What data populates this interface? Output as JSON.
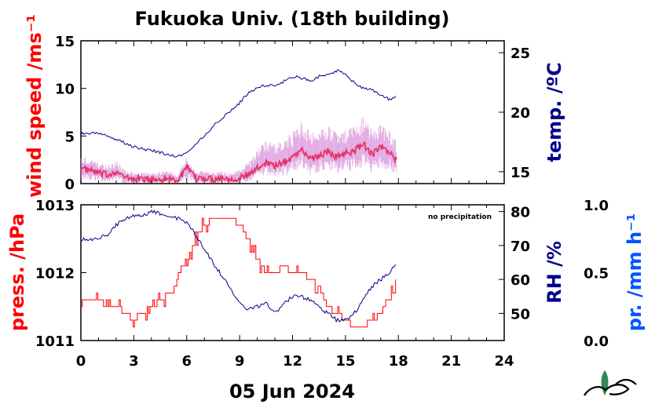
{
  "chart_data": [
    {
      "type": "line",
      "title": "Fukuoka Univ. (18th building)",
      "xlabel": "05 Jun 2024",
      "x_ticks": [
        "0",
        "3",
        "6",
        "9",
        "12",
        "15",
        "18",
        "21",
        "24"
      ],
      "xlim": [
        0,
        24
      ],
      "y_left": {
        "label": "wind speed /ms⁻¹",
        "ticks": [
          "0",
          "5",
          "10",
          "15"
        ],
        "lim": [
          0,
          15
        ],
        "color": "#ff0000"
      },
      "y_right": {
        "label": "temp. /ºC",
        "ticks": [
          "15",
          "20",
          "25"
        ],
        "lim": [
          14,
          26
        ],
        "color": "#00008b"
      },
      "series": [
        {
          "name": "wind speed (mean)",
          "axis": "left",
          "color": "#ff0000",
          "x": [
            0,
            0.5,
            1,
            1.5,
            2,
            2.5,
            3,
            3.5,
            4,
            4.5,
            5,
            5.5,
            6,
            6.5,
            7,
            7.5,
            8,
            8.5,
            9,
            9.5,
            10,
            10.5,
            11,
            11.5,
            12,
            12.5,
            13,
            13.5,
            14,
            14.5,
            15,
            15.5,
            16,
            16.5,
            17,
            17.5,
            17.9
          ],
          "y": [
            1.6,
            1.4,
            1.1,
            0.9,
            1.3,
            0.6,
            0.5,
            0.5,
            0.4,
            0.5,
            0.6,
            0.3,
            1.7,
            0.5,
            0.6,
            0.5,
            0.6,
            0.5,
            0.6,
            0.9,
            1.6,
            2.3,
            1.9,
            2.2,
            2.8,
            3.6,
            2.6,
            2.9,
            3.4,
            2.8,
            3.2,
            3.4,
            4.2,
            3.1,
            3.8,
            3.3,
            2.4
          ]
        },
        {
          "name": "wind speed (gust range)",
          "axis": "left",
          "color": "#cc66cc",
          "x": [
            0,
            0.5,
            1,
            1.5,
            2,
            2.5,
            3,
            3.5,
            4,
            4.5,
            5,
            5.5,
            6,
            6.5,
            7,
            7.5,
            8,
            8.5,
            9,
            9.5,
            10,
            10.5,
            11,
            11.5,
            12,
            12.5,
            13,
            13.5,
            14,
            14.5,
            15,
            15.5,
            16,
            16.5,
            17,
            17.5,
            17.9
          ],
          "y_min": [
            0.4,
            0.3,
            0.2,
            0.1,
            0.3,
            0.0,
            0.0,
            0.0,
            0.0,
            0.0,
            0.0,
            0.0,
            0.5,
            0.0,
            0.0,
            0.0,
            0.0,
            0.0,
            0.1,
            0.2,
            0.6,
            0.9,
            0.6,
            0.8,
            1.0,
            1.6,
            0.9,
            1.1,
            1.2,
            1.0,
            1.2,
            1.3,
            1.8,
            1.1,
            1.6,
            1.3,
            0.8
          ],
          "y_max": [
            2.9,
            2.6,
            2.2,
            2.0,
            2.4,
            1.4,
            1.2,
            1.2,
            1.1,
            1.3,
            1.4,
            0.9,
            3.0,
            1.2,
            1.4,
            1.2,
            1.3,
            1.1,
            1.5,
            2.3,
            3.6,
            4.8,
            4.3,
            4.7,
            5.4,
            6.6,
            5.3,
            5.6,
            6.1,
            5.3,
            5.8,
            6.0,
            7.0,
            5.7,
            6.3,
            5.8,
            4.4
          ]
        },
        {
          "name": "temperature",
          "axis": "right",
          "color": "#00008b",
          "x": [
            0,
            0.5,
            1,
            1.5,
            2,
            2.5,
            3,
            3.5,
            4,
            4.5,
            5,
            5.5,
            6,
            6.5,
            7,
            7.5,
            8,
            8.5,
            9,
            9.5,
            10,
            10.5,
            11,
            11.5,
            12,
            12.5,
            13,
            13.5,
            14,
            14.5,
            15,
            15.5,
            16,
            16.5,
            17,
            17.5,
            17.9
          ],
          "y": [
            18.2,
            18.2,
            18.2,
            18.0,
            17.7,
            17.4,
            17.1,
            16.9,
            16.8,
            16.6,
            16.4,
            16.3,
            16.6,
            17.3,
            18.0,
            18.8,
            19.5,
            20.1,
            20.8,
            21.6,
            22.1,
            22.3,
            22.2,
            22.6,
            23.0,
            22.9,
            22.6,
            23.0,
            23.1,
            23.5,
            23.2,
            22.5,
            22.0,
            21.9,
            21.4,
            21.1,
            21.3
          ]
        }
      ]
    },
    {
      "type": "line",
      "x_ticks": [
        "0",
        "3",
        "6",
        "9",
        "12",
        "15",
        "18",
        "21",
        "24"
      ],
      "xlim": [
        0,
        24
      ],
      "annotation": "no precipitation",
      "y_left": {
        "label": "press. /hPa",
        "ticks": [
          "1011",
          "1012",
          "1013"
        ],
        "lim": [
          1011,
          1013
        ],
        "color": "#ff0000"
      },
      "y_right": {
        "label": "RH /%",
        "ticks": [
          "50",
          "60",
          "70",
          "80"
        ],
        "lim": [
          42,
          82
        ],
        "color": "#00008b"
      },
      "y_right2": {
        "label": "pr. /mm h⁻¹",
        "ticks": [
          "0.0",
          "0.5",
          "1.0"
        ],
        "lim": [
          0,
          1
        ],
        "color": "#0055ff"
      },
      "series": [
        {
          "name": "pressure",
          "axis": "left",
          "color": "#ff0000",
          "x": [
            0,
            0.5,
            1,
            1.5,
            2,
            2.5,
            3,
            3.5,
            4,
            4.5,
            5,
            5.5,
            6,
            6.5,
            7,
            7.5,
            8,
            8.5,
            9,
            9.5,
            10,
            10.5,
            11,
            11.5,
            12,
            12.5,
            13,
            13.5,
            14,
            14.5,
            15,
            15.5,
            16,
            16.5,
            17,
            17.5,
            17.9
          ],
          "y": [
            1011.6,
            1011.6,
            1011.6,
            1011.5,
            1011.5,
            1011.4,
            1011.3,
            1011.4,
            1011.5,
            1011.6,
            1011.7,
            1011.9,
            1012.2,
            1012.5,
            1012.7,
            1012.8,
            1012.8,
            1012.8,
            1012.7,
            1012.5,
            1012.2,
            1012.0,
            1012.0,
            1012.1,
            1012.0,
            1012.0,
            1011.9,
            1011.8,
            1011.5,
            1011.4,
            1011.3,
            1011.2,
            1011.2,
            1011.3,
            1011.4,
            1011.6,
            1011.9
          ]
        },
        {
          "name": "relative humidity",
          "axis": "right",
          "color": "#00008b",
          "x": [
            0,
            0.5,
            1,
            1.5,
            2,
            2.5,
            3,
            3.5,
            4,
            4.5,
            5,
            5.5,
            6,
            6.5,
            7,
            7.5,
            8,
            8.5,
            9,
            9.5,
            10,
            10.5,
            11,
            11.5,
            12,
            12.5,
            13,
            13.5,
            14,
            14.5,
            15,
            15.5,
            16,
            16.5,
            17,
            17.5,
            17.9
          ],
          "y": [
            72,
            72,
            72,
            73,
            76,
            78,
            79,
            79,
            80,
            79.5,
            79,
            78,
            77,
            73,
            69,
            65,
            61,
            57,
            53,
            51,
            52,
            53,
            50,
            53,
            55,
            55,
            54,
            52,
            50,
            48,
            48,
            50,
            54,
            58,
            60,
            62,
            65
          ]
        }
      ]
    }
  ]
}
